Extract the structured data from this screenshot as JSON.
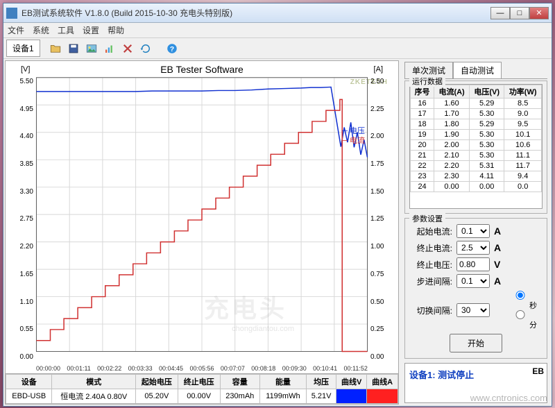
{
  "window": {
    "title": "EB测试系统软件 V1.8.0 (Build 2015-10-30 充电头特别版)"
  },
  "menu": {
    "file": "文件",
    "system": "系统",
    "tools": "工具",
    "settings": "设置",
    "help": "帮助"
  },
  "toolbar": {
    "device_tab": "设备1"
  },
  "chart": {
    "title": "EB Tester Software",
    "y_left_label": "[V]",
    "y_right_label": "[A]",
    "watermark_brand": "ZKETECH",
    "legend_v": "电压",
    "legend_a": "电流",
    "watermark_big": "充电头",
    "watermark_url": "chongdiantou.com",
    "colors": {
      "voltage": "#1030d0",
      "current": "#d03030",
      "grid": "#d8d8d8",
      "axis": "#606060",
      "bg": "#ffffff"
    },
    "y_left_ticks": [
      "5.50",
      "4.95",
      "4.40",
      "3.85",
      "3.30",
      "2.75",
      "2.20",
      "1.65",
      "1.10",
      "0.55",
      "0.00"
    ],
    "y_right_ticks": [
      "2.50",
      "2.25",
      "2.00",
      "1.75",
      "1.50",
      "1.25",
      "1.00",
      "0.75",
      "0.50",
      "0.25",
      "0.00"
    ],
    "x_ticks": [
      "00:00:00",
      "00:01:11",
      "00:02:22",
      "00:03:33",
      "00:04:45",
      "00:05:56",
      "00:07:07",
      "00:08:18",
      "00:09:30",
      "00:10:41",
      "00:11:52"
    ],
    "ylim_left": [
      0,
      5.5
    ],
    "ylim_right": [
      0,
      2.5
    ],
    "voltage_series": [
      [
        0.0,
        5.22
      ],
      [
        0.05,
        5.22
      ],
      [
        0.1,
        5.22
      ],
      [
        0.15,
        5.22
      ],
      [
        0.2,
        5.22
      ],
      [
        0.25,
        5.22
      ],
      [
        0.3,
        5.22
      ],
      [
        0.35,
        5.23
      ],
      [
        0.4,
        5.23
      ],
      [
        0.45,
        5.23
      ],
      [
        0.5,
        5.23
      ],
      [
        0.55,
        5.24
      ],
      [
        0.6,
        5.24
      ],
      [
        0.65,
        5.25
      ],
      [
        0.7,
        5.27
      ],
      [
        0.75,
        5.28
      ],
      [
        0.8,
        5.29
      ],
      [
        0.83,
        5.3
      ],
      [
        0.86,
        5.3
      ],
      [
        0.89,
        5.31
      ],
      [
        0.92,
        4.11
      ],
      [
        0.93,
        4.5
      ],
      [
        0.94,
        4.2
      ],
      [
        0.95,
        4.6
      ],
      [
        0.96,
        4.1
      ],
      [
        0.97,
        4.4
      ],
      [
        0.98,
        3.95
      ],
      [
        0.99,
        4.25
      ],
      [
        1.0,
        3.9
      ]
    ],
    "current_series": [
      [
        0.0,
        0.1
      ],
      [
        0.042,
        0.1
      ],
      [
        0.042,
        0.2
      ],
      [
        0.083,
        0.2
      ],
      [
        0.083,
        0.3
      ],
      [
        0.125,
        0.3
      ],
      [
        0.125,
        0.4
      ],
      [
        0.167,
        0.4
      ],
      [
        0.167,
        0.5
      ],
      [
        0.208,
        0.5
      ],
      [
        0.208,
        0.6
      ],
      [
        0.25,
        0.6
      ],
      [
        0.25,
        0.7
      ],
      [
        0.292,
        0.7
      ],
      [
        0.292,
        0.8
      ],
      [
        0.333,
        0.8
      ],
      [
        0.333,
        0.9
      ],
      [
        0.375,
        0.9
      ],
      [
        0.375,
        1.0
      ],
      [
        0.417,
        1.0
      ],
      [
        0.417,
        1.1
      ],
      [
        0.458,
        1.1
      ],
      [
        0.458,
        1.2
      ],
      [
        0.5,
        1.2
      ],
      [
        0.5,
        1.3
      ],
      [
        0.542,
        1.3
      ],
      [
        0.542,
        1.4
      ],
      [
        0.583,
        1.4
      ],
      [
        0.583,
        1.5
      ],
      [
        0.625,
        1.5
      ],
      [
        0.625,
        1.6
      ],
      [
        0.667,
        1.6
      ],
      [
        0.667,
        1.7
      ],
      [
        0.708,
        1.7
      ],
      [
        0.708,
        1.8
      ],
      [
        0.75,
        1.8
      ],
      [
        0.75,
        1.9
      ],
      [
        0.792,
        1.9
      ],
      [
        0.792,
        2.0
      ],
      [
        0.833,
        2.0
      ],
      [
        0.833,
        2.1
      ],
      [
        0.875,
        2.1
      ],
      [
        0.875,
        2.2
      ],
      [
        0.917,
        2.2
      ],
      [
        0.917,
        2.3
      ],
      [
        0.924,
        2.3
      ],
      [
        0.924,
        0.0
      ],
      [
        1.0,
        0.0
      ]
    ]
  },
  "bottom": {
    "headers": {
      "device": "设备",
      "mode": "模式",
      "start_v": "起始电压",
      "end_v": "终止电压",
      "capacity": "容量",
      "energy": "能量",
      "avg_v": "均压",
      "curve_v": "曲线V",
      "curve_a": "曲线A"
    },
    "row": {
      "device": "EBD-USB",
      "mode": "恒电流  2.40A  0.80V",
      "start_v": "05.20V",
      "end_v": "00.00V",
      "capacity": "230mAh",
      "energy": "1199mWh",
      "avg_v": "5.21V"
    }
  },
  "right_tabs": {
    "single": "单次测试",
    "auto": "自动测试"
  },
  "run_data": {
    "title": "运行数据",
    "cols": {
      "idx": "序号",
      "current": "电流(A)",
      "voltage": "电压(V)",
      "power": "功率(W)"
    },
    "rows": [
      {
        "idx": "16",
        "a": "1.60",
        "v": "5.29",
        "w": "8.5"
      },
      {
        "idx": "17",
        "a": "1.70",
        "v": "5.30",
        "w": "9.0"
      },
      {
        "idx": "18",
        "a": "1.80",
        "v": "5.29",
        "w": "9.5"
      },
      {
        "idx": "19",
        "a": "1.90",
        "v": "5.30",
        "w": "10.1"
      },
      {
        "idx": "20",
        "a": "2.00",
        "v": "5.30",
        "w": "10.6"
      },
      {
        "idx": "21",
        "a": "2.10",
        "v": "5.30",
        "w": "11.1"
      },
      {
        "idx": "22",
        "a": "2.20",
        "v": "5.31",
        "w": "11.7"
      },
      {
        "idx": "23",
        "a": "2.30",
        "v": "4.11",
        "w": "9.4"
      },
      {
        "idx": "24",
        "a": "0.00",
        "v": "0.00",
        "w": "0.0"
      }
    ]
  },
  "params": {
    "title": "参数设置",
    "labels": {
      "start_i": "起始电流:",
      "end_i": "终止电流:",
      "end_v": "终止电压:",
      "step": "步进间隔:",
      "switch": "切换间隔:"
    },
    "values": {
      "start_i": "0.1",
      "end_i": "2.5",
      "end_v": "0.80",
      "step": "0.1",
      "switch": "30"
    },
    "units": {
      "a": "A",
      "v": "V"
    },
    "radio": {
      "sec": "秒",
      "min": "分"
    },
    "start_btn": "开始"
  },
  "status": {
    "text": "设备1: 测试停止",
    "brand": "EB"
  },
  "site_watermark": "www.cntronics.com"
}
